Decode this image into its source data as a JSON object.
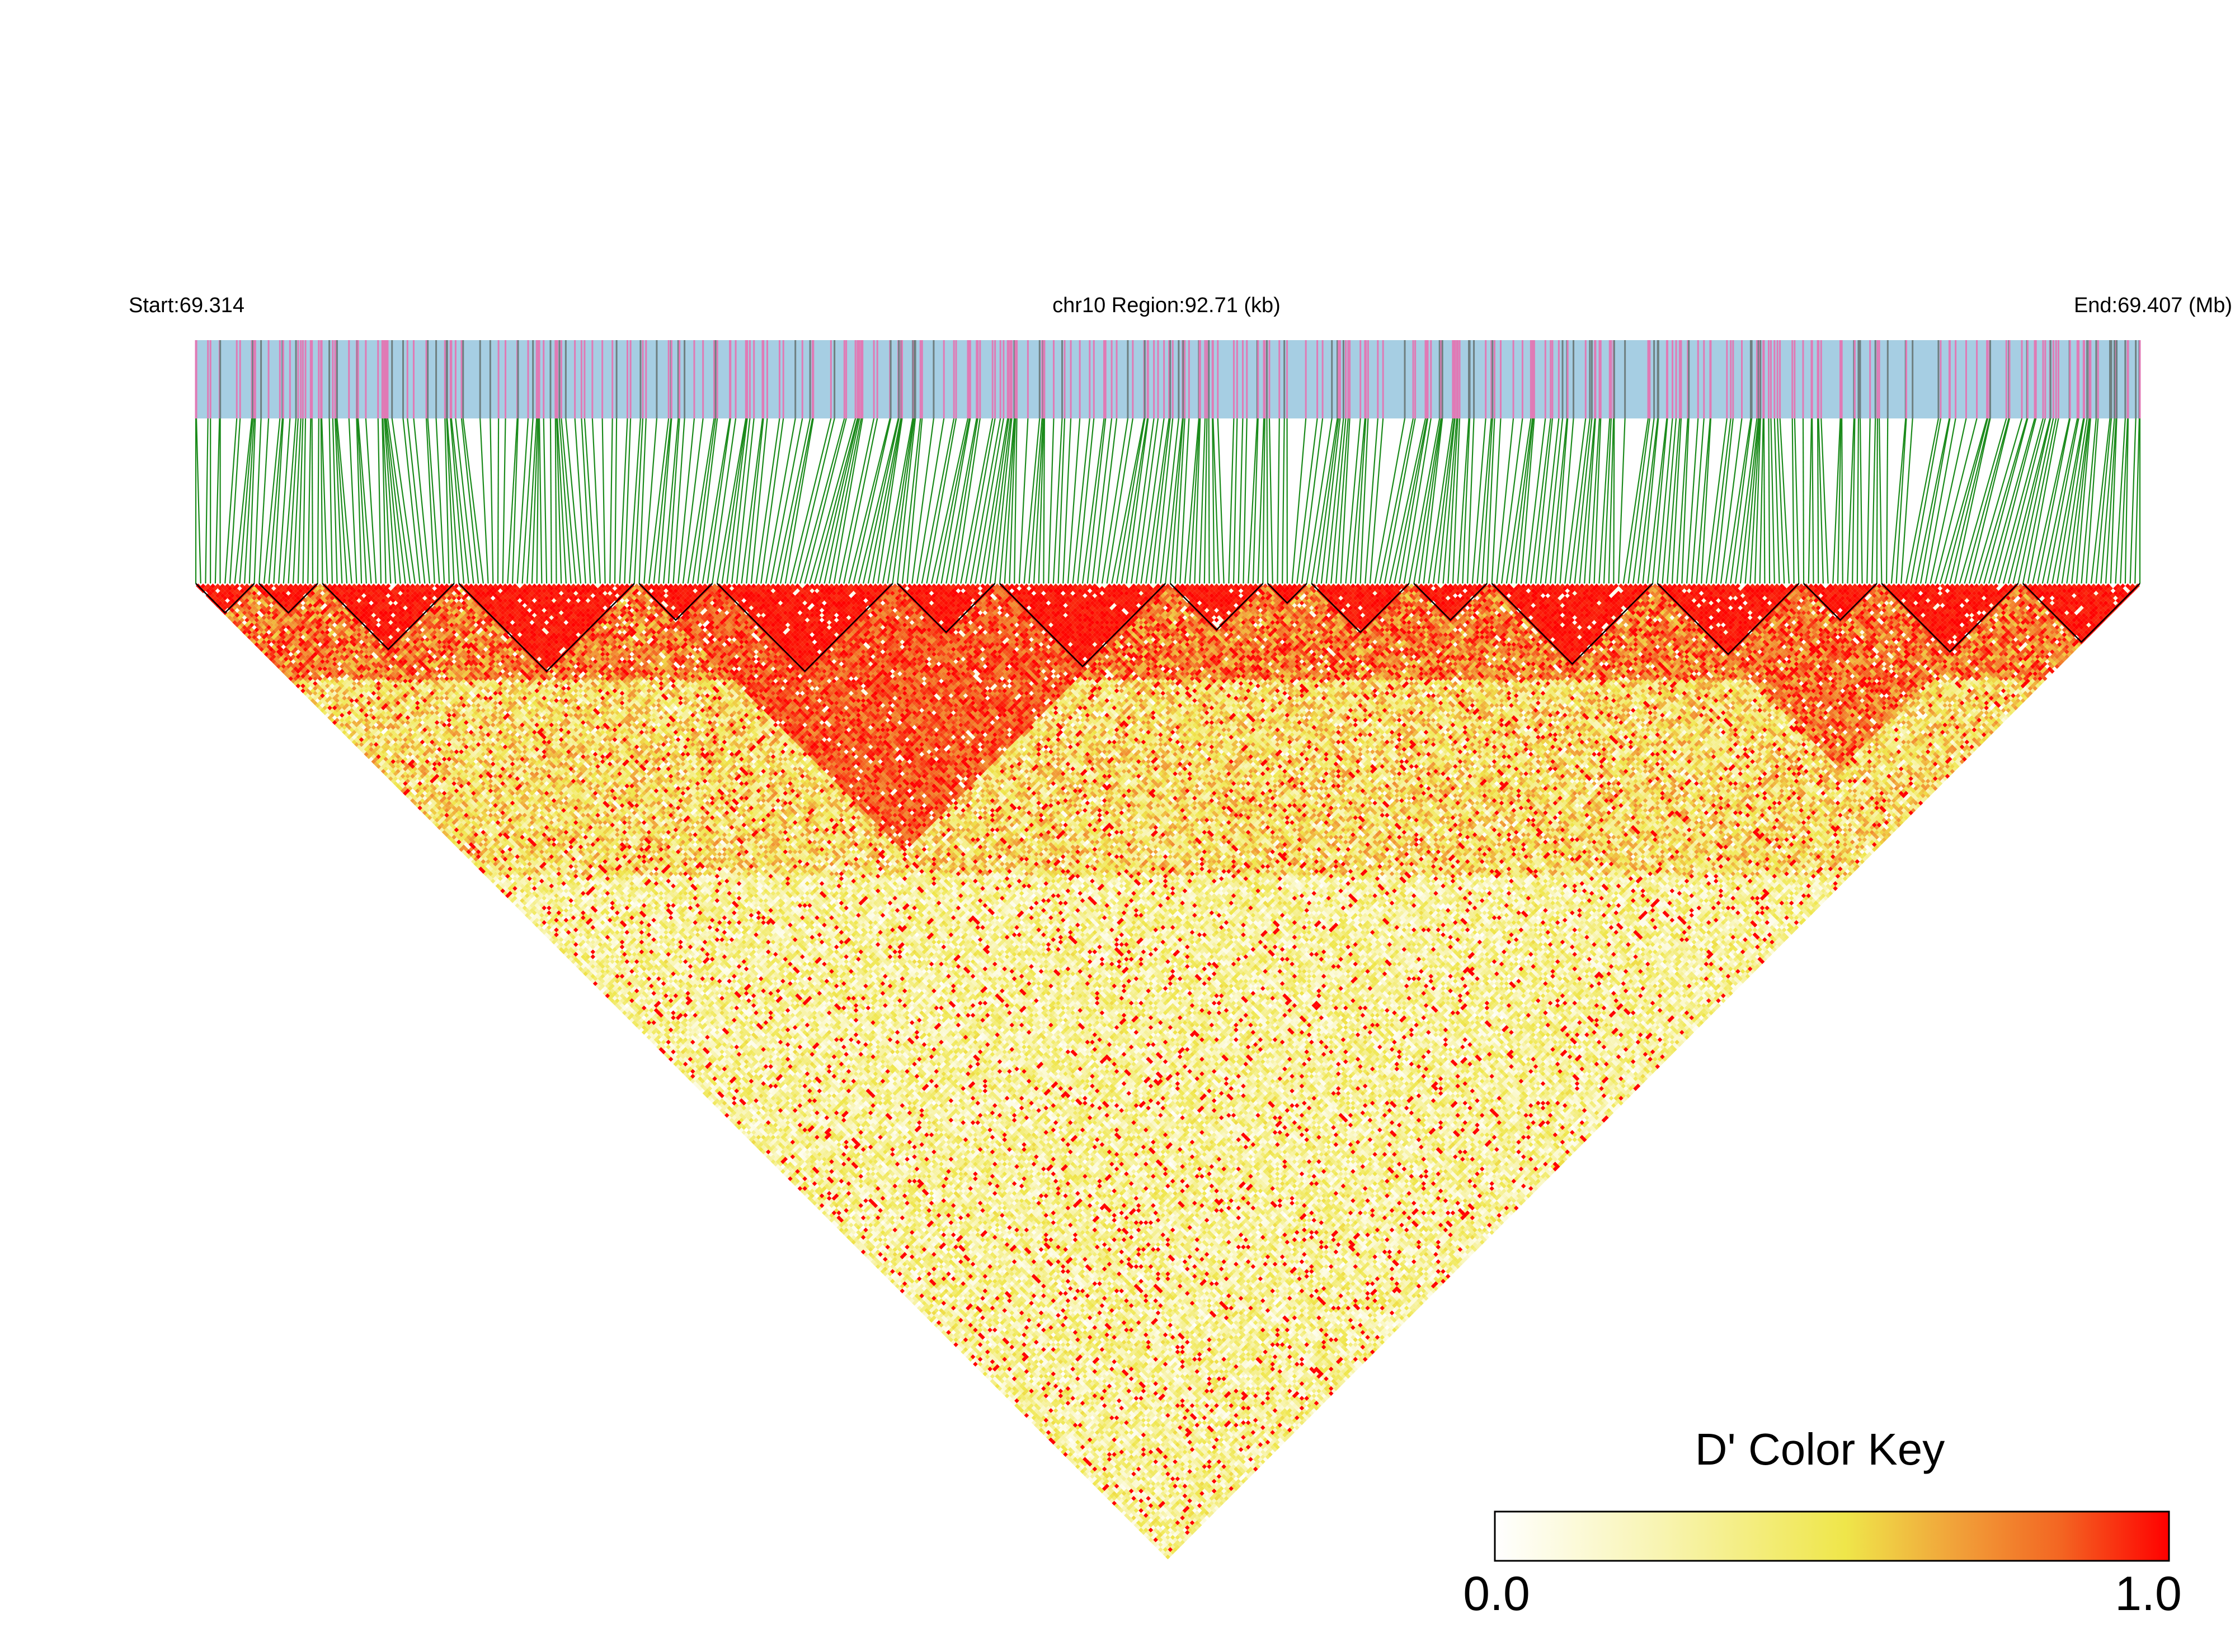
{
  "chart_data": {
    "type": "heatmap",
    "subtype": "linkage-disequilibrium-triangle",
    "chromosome_label": "chr10 Region:92.71 (kb)",
    "start_label": "Start:69.314",
    "end_label": "End:69.407 (Mb)",
    "start_mb": 69.314,
    "end_mb": 69.407,
    "region_kb": 92.71,
    "snp_count": 400,
    "measure": "D'",
    "value_range": [
      0,
      1
    ],
    "haplotype_block_boundaries_snp_index": [
      0,
      13,
      26,
      54,
      91,
      107,
      144,
      165,
      200,
      220,
      229,
      250,
      266,
      300,
      330,
      346,
      375,
      400
    ],
    "colors": {
      "track_background": "#a6cee3",
      "snp_mark_pink": "#e07ab5",
      "snp_mark_gray": "#6e7f80",
      "connector_lines": "#1a8a1a",
      "block_outline": "#000000"
    },
    "legend": {
      "title": "D' Color Key",
      "min_label": "0.0",
      "max_label": "1.0",
      "gradient": [
        "#ffffff",
        "#f8f4b0",
        "#efe64a",
        "#f1a33a",
        "#f36522",
        "#ff0000"
      ]
    }
  }
}
